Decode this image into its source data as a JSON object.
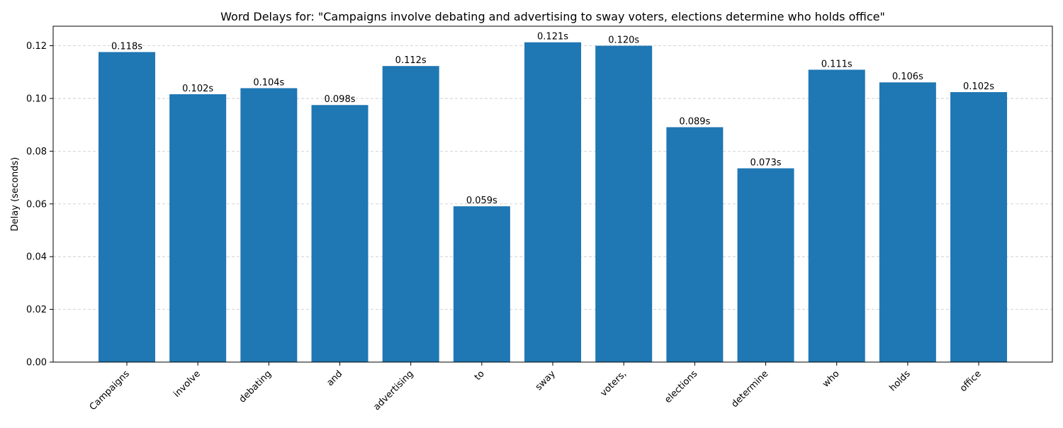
{
  "chart_data": {
    "type": "bar",
    "title": "Word Delays for: \"Campaigns involve debating and advertising to sway voters, elections determine who holds office\"",
    "xlabel": "",
    "ylabel": "Delay (seconds)",
    "categories": [
      "Campaigns",
      "involve",
      "debating",
      "and",
      "advertising",
      "to",
      "sway",
      "voters,",
      "elections",
      "determine",
      "who",
      "holds",
      "office"
    ],
    "values": [
      0.1176,
      0.1016,
      0.1039,
      0.0975,
      0.1123,
      0.0591,
      0.1213,
      0.12,
      0.0891,
      0.0735,
      0.1109,
      0.1061,
      0.1024
    ],
    "value_labels": [
      "0.118s",
      "0.102s",
      "0.104s",
      "0.098s",
      "0.112s",
      "0.059s",
      "0.121s",
      "0.120s",
      "0.089s",
      "0.073s",
      "0.111s",
      "0.106s",
      "0.102s"
    ],
    "yticks": [
      "0.00",
      "0.02",
      "0.04",
      "0.06",
      "0.08",
      "0.10",
      "0.12"
    ],
    "ylim": [
      0,
      0.1274
    ],
    "grid": "y-dashed",
    "colors": {
      "bar": "#1f77b4",
      "grid": "#c8c8c8",
      "axis": "#000000"
    }
  }
}
